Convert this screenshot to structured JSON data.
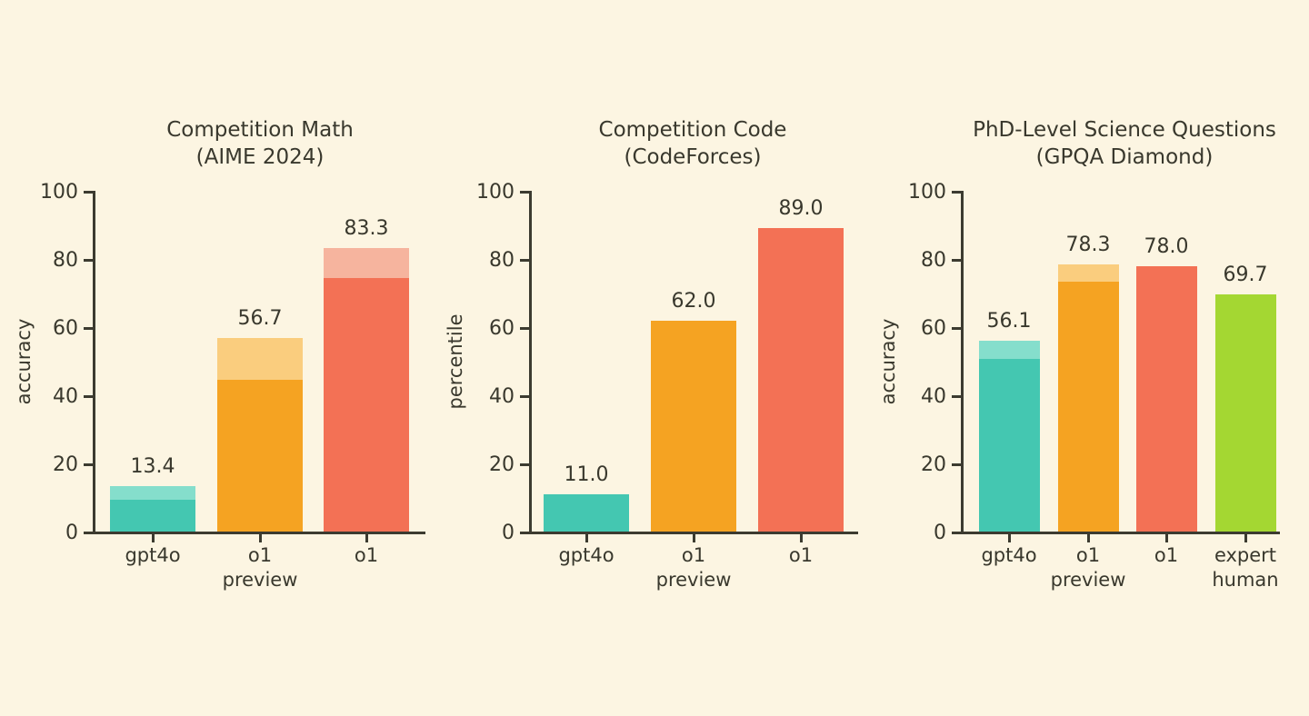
{
  "figure": {
    "background_color": "#FCF5E2",
    "ink_color": "#39382D",
    "axis_color": "#3C3B30"
  },
  "colors": {
    "teal": {
      "solid": "#44C7B1",
      "light": "#85DECC"
    },
    "orange": {
      "solid": "#F5A322",
      "light": "#FACD7E"
    },
    "coral": {
      "solid": "#F37155",
      "light": "#F6B49E"
    },
    "green": {
      "solid": "#A4D732",
      "light": "#C6E583"
    }
  },
  "chart_data": [
    {
      "type": "bar",
      "title": "Competition Math\n(AIME 2024)",
      "xlabel": "",
      "ylabel": "accuracy",
      "ylim": [
        0,
        100
      ],
      "yticks": [
        0,
        20,
        40,
        60,
        80,
        100
      ],
      "grid": false,
      "legend": "none",
      "categories": [
        "gpt4o",
        "o1\npreview",
        "o1"
      ],
      "series": [
        {
          "name": "solid-lower-portion",
          "values": [
            9.3,
            44.6,
            74.4
          ]
        },
        {
          "name": "shaded-total",
          "values": [
            13.4,
            56.7,
            83.3
          ]
        }
      ],
      "bar_value_labels": [
        "13.4",
        "56.7",
        "83.3"
      ],
      "bar_color_keys": [
        "teal",
        "orange",
        "coral"
      ]
    },
    {
      "type": "bar",
      "title": "Competition Code\n(CodeForces)",
      "xlabel": "",
      "ylabel": "percentile",
      "ylim": [
        0,
        100
      ],
      "yticks": [
        0,
        20,
        40,
        60,
        80,
        100
      ],
      "grid": false,
      "legend": "none",
      "categories": [
        "gpt4o",
        "o1\npreview",
        "o1"
      ],
      "series": [
        {
          "name": "solid-lower-portion",
          "values": [
            11.0,
            62.0,
            89.0
          ]
        },
        {
          "name": "shaded-total",
          "values": [
            11.0,
            62.0,
            89.0
          ]
        }
      ],
      "bar_value_labels": [
        "11.0",
        "62.0",
        "89.0"
      ],
      "bar_color_keys": [
        "teal",
        "orange",
        "coral"
      ]
    },
    {
      "type": "bar",
      "title": "PhD-Level Science Questions\n(GPQA Diamond)",
      "xlabel": "",
      "ylabel": "accuracy",
      "ylim": [
        0,
        100
      ],
      "yticks": [
        0,
        20,
        40,
        60,
        80,
        100
      ],
      "grid": false,
      "legend": "none",
      "categories": [
        "gpt4o",
        "o1\npreview",
        "o1",
        "expert\nhuman"
      ],
      "series": [
        {
          "name": "solid-lower-portion",
          "values": [
            50.6,
            73.3,
            78.0,
            69.7
          ]
        },
        {
          "name": "shaded-total",
          "values": [
            56.1,
            78.3,
            78.0,
            69.7
          ]
        }
      ],
      "bar_value_labels": [
        "56.1",
        "78.3",
        "78.0",
        "69.7"
      ],
      "bar_color_keys": [
        "teal",
        "orange",
        "coral",
        "green"
      ]
    }
  ]
}
